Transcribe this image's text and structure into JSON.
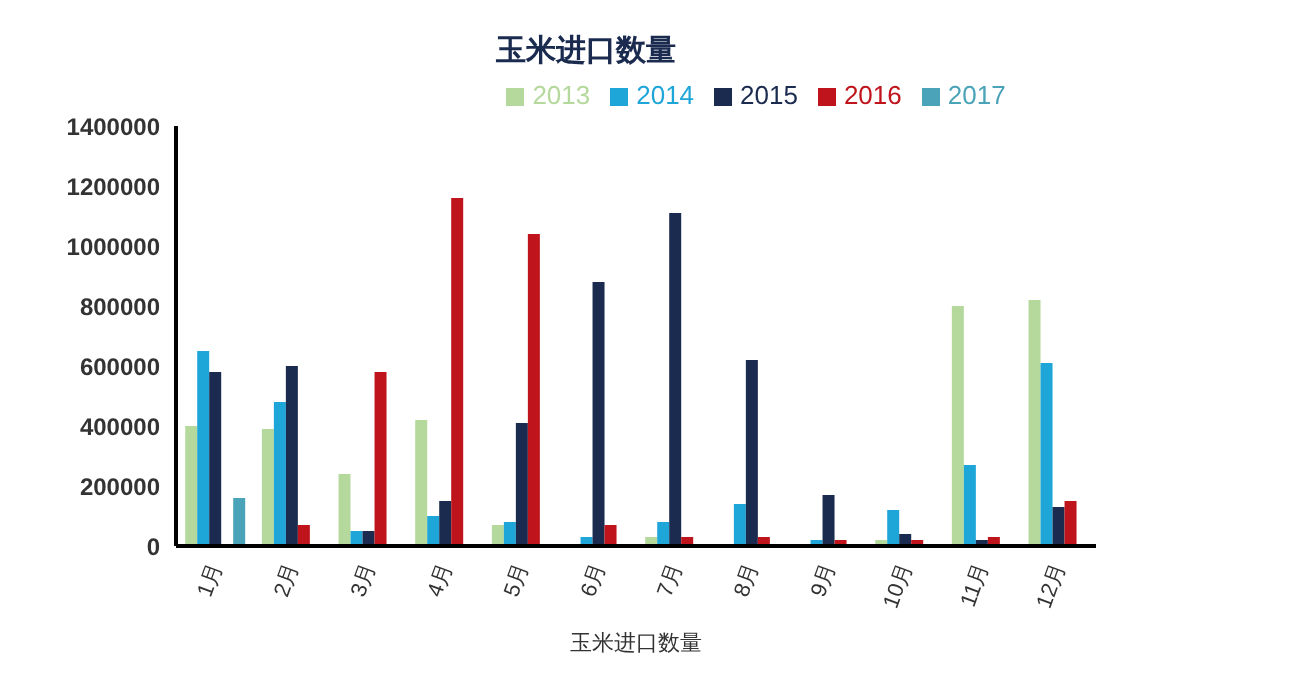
{
  "chart_data": {
    "type": "bar",
    "title": "玉米进口数量",
    "categories": [
      "1月",
      "2月",
      "3月",
      "4月",
      "5月",
      "6月",
      "7月",
      "8月",
      "9月",
      "10月",
      "11月",
      "12月"
    ],
    "series": [
      {
        "name": "2013",
        "color": "#b5d99c",
        "values": [
          400000,
          390000,
          240000,
          420000,
          70000,
          0,
          30000,
          0,
          0,
          20000,
          800000,
          820000
        ]
      },
      {
        "name": "2014",
        "color": "#1fa6d8",
        "values": [
          650000,
          480000,
          50000,
          100000,
          80000,
          30000,
          80000,
          140000,
          20000,
          120000,
          270000,
          610000
        ]
      },
      {
        "name": "2015",
        "color": "#1b2b4f",
        "values": [
          580000,
          600000,
          50000,
          150000,
          410000,
          880000,
          1110000,
          620000,
          170000,
          40000,
          20000,
          130000
        ]
      },
      {
        "name": "2016",
        "color": "#c0141c",
        "values": [
          0,
          70000,
          580000,
          1160000,
          1040000,
          70000,
          30000,
          30000,
          20000,
          20000,
          30000,
          150000
        ]
      },
      {
        "name": "2017",
        "color": "#4aa3b8",
        "values": [
          160000,
          null,
          null,
          null,
          null,
          null,
          null,
          null,
          null,
          null,
          null,
          null
        ]
      }
    ],
    "ylim": [
      0,
      1400000
    ],
    "yticks": [
      0,
      200000,
      400000,
      600000,
      800000,
      1000000,
      1200000,
      1400000
    ],
    "grid": false,
    "legend": "top",
    "annotations": [
      "玉米进口数量"
    ]
  }
}
